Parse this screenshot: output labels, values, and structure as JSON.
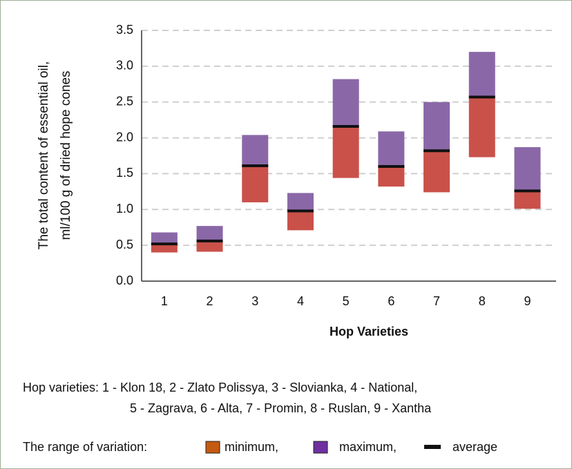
{
  "chart_data": {
    "type": "floating_bar",
    "ylabel": [
      "The total content of essential oil,",
      "ml/100 g of dried hope cones"
    ],
    "xlabel": "Hop Varieties",
    "categories": [
      "1",
      "2",
      "3",
      "4",
      "5",
      "6",
      "7",
      "8",
      "9"
    ],
    "series": [
      {
        "name": "minimum,",
        "color": "#c9514a",
        "legend_color": "#c55a11",
        "values": [
          0.4,
          0.41,
          1.1,
          0.71,
          1.44,
          1.32,
          1.24,
          1.73,
          1.01
        ]
      },
      {
        "name": "maximum,",
        "color": "#8a68a8",
        "legend_color": "#7030a0",
        "values": [
          0.68,
          0.77,
          2.04,
          1.23,
          2.82,
          2.09,
          2.5,
          3.2,
          1.87
        ]
      },
      {
        "name": "average",
        "color": "#111111",
        "legend_color": "#111111",
        "values": [
          0.52,
          0.56,
          1.61,
          0.98,
          2.16,
          1.6,
          1.82,
          2.57,
          1.26
        ]
      }
    ],
    "ylim": [
      0,
      3.5
    ],
    "yticks": [
      {
        "value": 0,
        "label": "0.0"
      },
      0.5,
      {
        "value": 1,
        "label": "1.0"
      },
      1.5,
      {
        "value": 2,
        "label": "2.0"
      },
      2.5,
      {
        "value": 3,
        "label": "3.0"
      },
      3.5
    ],
    "grid": true,
    "notes": [
      "Hop varieties: 1 - Klon 18, 2 - Zlato Polissya, 3 - Slovianka, 4 - National,",
      "5 - Zagrava, 6 - Alta, 7 - Promin, 8 - Ruslan, 9 - Xantha"
    ],
    "legend_title": "The range of variation:"
  }
}
